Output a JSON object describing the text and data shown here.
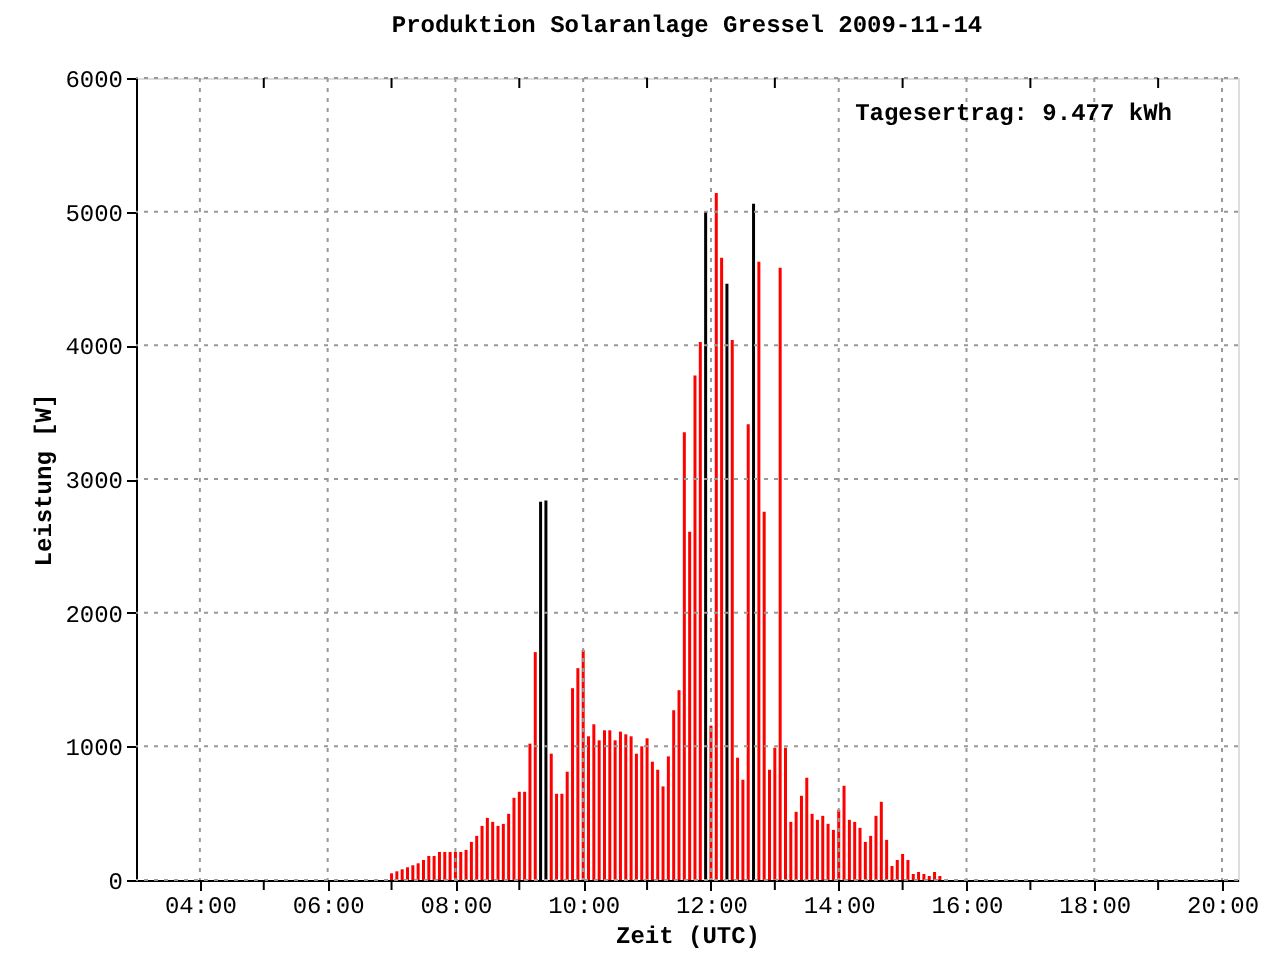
{
  "chart_data": {
    "type": "bar",
    "title": "Produktion Solaranlage Gressel 2009-11-14",
    "xlabel": "Zeit (UTC)",
    "ylabel": "Leistung [W]",
    "annotations": [
      "Tagesertrag: 9.477 kWh"
    ],
    "x": [
      7,
      7.0833,
      7.1667,
      7.25,
      7.3333,
      7.4167,
      7.5,
      7.5833,
      7.6667,
      7.75,
      7.8333,
      7.9167,
      8,
      8.0833,
      8.1667,
      8.25,
      8.3333,
      8.4167,
      8.5,
      8.5833,
      8.6667,
      8.75,
      8.8333,
      8.9167,
      9,
      9.0833,
      9.1667,
      9.25,
      9.3333,
      9.4167,
      9.5,
      9.5833,
      9.6667,
      9.75,
      9.8333,
      9.9167,
      10,
      10.0833,
      10.1667,
      10.25,
      10.3333,
      10.4167,
      10.5,
      10.5833,
      10.6667,
      10.75,
      10.8333,
      10.9167,
      11,
      11.0833,
      11.1667,
      11.25,
      11.3333,
      11.4167,
      11.5,
      11.5833,
      11.6667,
      11.75,
      11.8333,
      11.9167,
      12,
      12.0833,
      12.1667,
      12.25,
      12.3333,
      12.4167,
      12.5,
      12.5833,
      12.6667,
      12.75,
      12.8333,
      12.9167,
      13,
      13.0833,
      13.1667,
      13.25,
      13.3333,
      13.4167,
      13.5,
      13.5833,
      13.6667,
      13.75,
      13.8333,
      13.9167,
      14,
      14.0833,
      14.1667,
      14.25,
      14.3333,
      14.4167,
      14.5,
      14.5833,
      14.6667,
      14.75,
      14.8333,
      14.9167,
      15,
      15.0833,
      15.1667,
      15.25,
      15.3333,
      15.4167,
      15.5,
      15.5833
    ],
    "values": [
      50,
      65,
      80,
      95,
      110,
      125,
      150,
      180,
      180,
      210,
      210,
      210,
      210,
      210,
      225,
      285,
      330,
      405,
      465,
      435,
      405,
      420,
      495,
      615,
      660,
      660,
      1020,
      1705,
      2830,
      2840,
      945,
      645,
      645,
      810,
      1435,
      1585,
      1720,
      1075,
      1165,
      1045,
      1120,
      1120,
      1045,
      1110,
      1090,
      1075,
      945,
      1000,
      1060,
      885,
      825,
      700,
      925,
      1270,
      1420,
      3350,
      2605,
      3775,
      4025,
      5000,
      1155,
      5140,
      4655,
      4460,
      4040,
      915,
      750,
      3410,
      5060,
      4625,
      2755,
      825,
      990,
      4580,
      990,
      435,
      510,
      630,
      765,
      495,
      450,
      480,
      420,
      375,
      525,
      705,
      450,
      435,
      390,
      285,
      330,
      480,
      585,
      300,
      105,
      150,
      195,
      150,
      45,
      60,
      45,
      30,
      60,
      30
    ],
    "colors": [
      "#ff0000",
      "#ff0000",
      "#ff0000",
      "#ff0000",
      "#ff0000",
      "#ff0000",
      "#ff0000",
      "#ff0000",
      "#ff0000",
      "#ff0000",
      "#ff0000",
      "#ff0000",
      "#ff0000",
      "#ff0000",
      "#ff0000",
      "#ff0000",
      "#ff0000",
      "#ff0000",
      "#ff0000",
      "#ff0000",
      "#ff0000",
      "#ff0000",
      "#ff0000",
      "#ff0000",
      "#ff0000",
      "#ff0000",
      "#ff0000",
      "#ff0000",
      "#000000",
      "#000000",
      "#ff0000",
      "#ff0000",
      "#ff0000",
      "#ff0000",
      "#ff0000",
      "#ff0000",
      "#ff0000",
      "#ff0000",
      "#ff0000",
      "#ff0000",
      "#ff0000",
      "#ff0000",
      "#ff0000",
      "#ff0000",
      "#ff0000",
      "#ff0000",
      "#ff0000",
      "#ff0000",
      "#ff0000",
      "#ff0000",
      "#ff0000",
      "#ff0000",
      "#ff0000",
      "#ff0000",
      "#ff0000",
      "#ff0000",
      "#ff0000",
      "#ff0000",
      "#ff0000",
      "#000000",
      "#ff0000",
      "#ff0000",
      "#ff0000",
      "#000000",
      "#ff0000",
      "#ff0000",
      "#ff0000",
      "#ff0000",
      "#000000",
      "#ff0000",
      "#ff0000",
      "#ff0000",
      "#ff0000",
      "#ff0000",
      "#ff0000",
      "#ff0000",
      "#ff0000",
      "#ff0000",
      "#ff0000",
      "#ff0000",
      "#ff0000",
      "#ff0000",
      "#ff0000",
      "#ff0000",
      "#ff0000",
      "#ff0000",
      "#ff0000",
      "#ff0000",
      "#ff0000",
      "#ff0000",
      "#ff0000",
      "#ff0000",
      "#ff0000",
      "#ff0000",
      "#ff0000",
      "#ff0000",
      "#ff0000",
      "#ff0000",
      "#ff0000",
      "#ff0000",
      "#ff0000",
      "#ff0000",
      "#ff0000",
      "#ff0000"
    ],
    "xlim": [
      3,
      20.25
    ],
    "xticks": [
      {
        "value": 4,
        "label": "04:00"
      },
      {
        "value": 5,
        "label": null
      },
      {
        "value": 6,
        "label": "06:00"
      },
      {
        "value": 7,
        "label": null
      },
      {
        "value": 8,
        "label": "08:00"
      },
      {
        "value": 9,
        "label": null
      },
      {
        "value": 10,
        "label": "10:00"
      },
      {
        "value": 11,
        "label": null
      },
      {
        "value": 12,
        "label": "12:00"
      },
      {
        "value": 13,
        "label": null
      },
      {
        "value": 14,
        "label": "14:00"
      },
      {
        "value": 15,
        "label": null
      },
      {
        "value": 16,
        "label": "16:00"
      },
      {
        "value": 17,
        "label": null
      },
      {
        "value": 18,
        "label": "18:00"
      },
      {
        "value": 19,
        "label": null
      },
      {
        "value": 20,
        "label": "20:00"
      }
    ],
    "ylim": [
      0,
      6000
    ],
    "yticks": [
      0,
      1000,
      2000,
      3000,
      4000,
      5000,
      6000
    ],
    "grid": true
  }
}
